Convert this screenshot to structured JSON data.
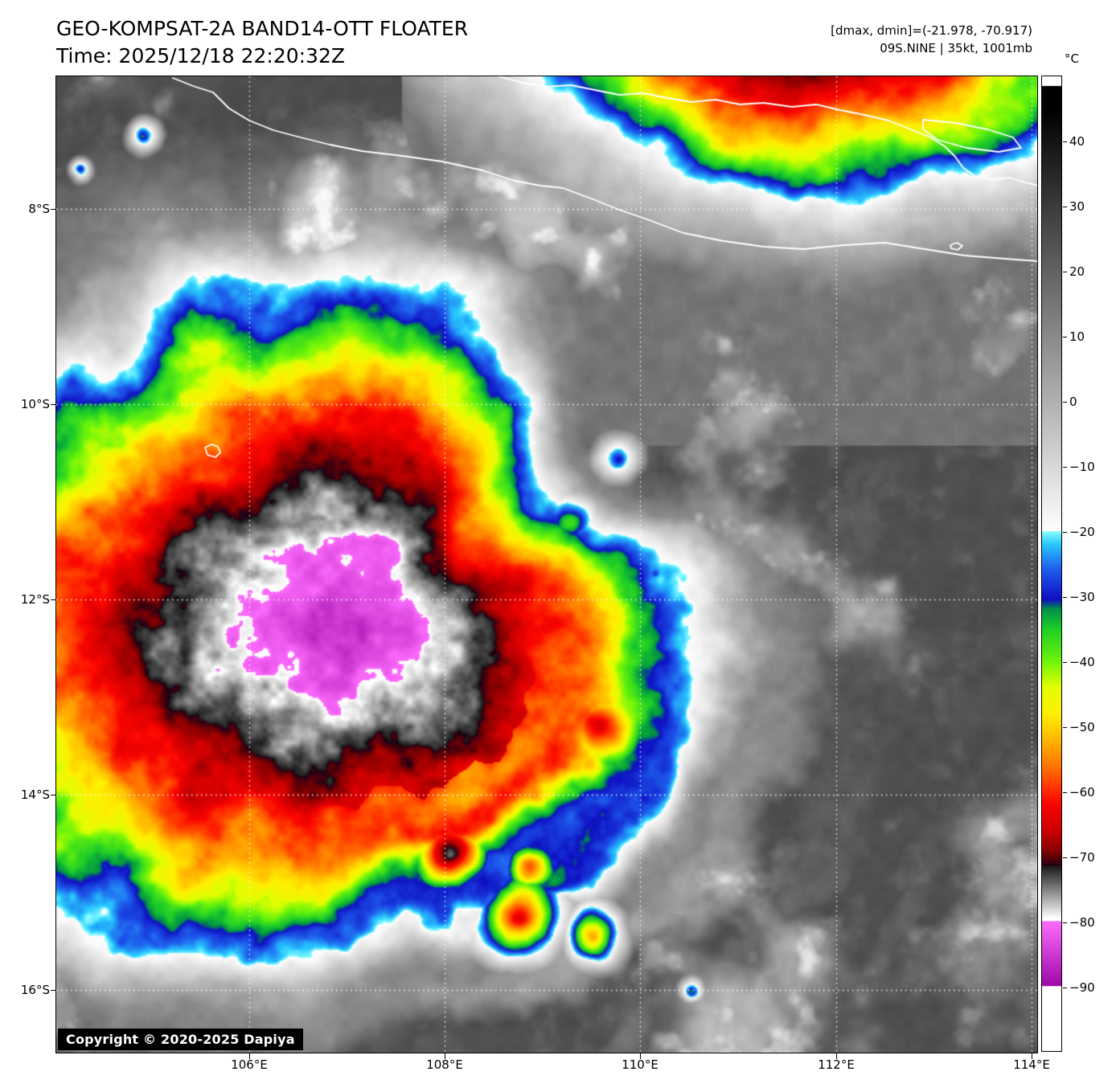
{
  "header": {
    "title": "GEO-KOMPSAT-2A BAND14-OTT FLOATER",
    "time": "Time: 2025/12/18 22:20:32Z",
    "dmax_dmin": "[dmax, dmin]=(-21.978, -70.917)",
    "storm_info": "09S.NINE | 35kt, 1001mb"
  },
  "colorbar": {
    "unit_label": "°C",
    "tick_values": [
      40,
      30,
      20,
      10,
      0,
      -10,
      -20,
      -30,
      -40,
      -50,
      -60,
      -70,
      -80,
      -90
    ]
  },
  "axes": {
    "lat_labels": [
      "8°S",
      "10°S",
      "12°S",
      "14°S",
      "16°S"
    ],
    "lon_labels": [
      "106°E",
      "108°E",
      "110°E",
      "112°E",
      "114°E"
    ]
  },
  "watermark": {
    "copyright": "Copyright © 2020-2025 Dapiya"
  },
  "palette": {
    "description": "IR brightness temperature enhancement (°C)",
    "gray_warm": {
      "t_black": 45,
      "t_white": -20
    },
    "stops": [
      {
        "t": -20,
        "c": "#8CFFFF"
      },
      {
        "t": -22,
        "c": "#28C8FF"
      },
      {
        "t": -26,
        "c": "#1E5AEB"
      },
      {
        "t": -30.5,
        "c": "#0F0FC3"
      },
      {
        "t": -32,
        "c": "#009146"
      },
      {
        "t": -35,
        "c": "#1ECD28"
      },
      {
        "t": -40,
        "c": "#6EF50A"
      },
      {
        "t": -44,
        "c": "#E1FF00"
      },
      {
        "t": -48,
        "c": "#FFF000"
      },
      {
        "t": -52,
        "c": "#FFB900"
      },
      {
        "t": -56,
        "c": "#FF7800"
      },
      {
        "t": -59,
        "c": "#FF3C00"
      },
      {
        "t": -62,
        "c": "#FA0500"
      },
      {
        "t": -66,
        "c": "#CD0000"
      },
      {
        "t": -69,
        "c": "#8C0000"
      },
      {
        "t": -71,
        "c": "#3C000F"
      },
      {
        "t": -71.5,
        "c": "#190014"
      }
    ],
    "gray_cold": {
      "t_dark": -71.5,
      "t_white": -79.5
    },
    "magenta": {
      "t_light": -80,
      "c_light": "#FC6CFC",
      "t_dark": -90,
      "c_dark": "#9E08A8"
    },
    "below_min": "#FFFFFF"
  }
}
